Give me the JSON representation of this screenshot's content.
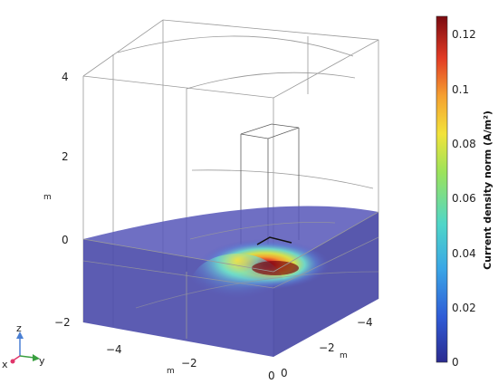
{
  "plot": {
    "z_ticks": [
      "4",
      "2",
      "0",
      "−2"
    ],
    "z_axis_label": "m",
    "x_ticks": [
      "−4",
      "−2",
      "0"
    ],
    "x_axis_label": "m",
    "y_ticks": [
      "0",
      "−2",
      "−4"
    ],
    "y_axis_label": "m"
  },
  "colorbar": {
    "ticks": [
      "0.12",
      "0.1",
      "0.08",
      "0.06",
      "0.04",
      "0.02",
      "0"
    ],
    "title": "Current density norm (A/m²)",
    "colors": [
      "#2b2b8f",
      "#2f5bd6",
      "#3aa6e6",
      "#4fd6c8",
      "#9ce35a",
      "#f2e33a",
      "#f5a030",
      "#e23a24",
      "#7a0a10"
    ]
  },
  "triad": {
    "z": "z",
    "y": "y",
    "x": "x"
  }
}
